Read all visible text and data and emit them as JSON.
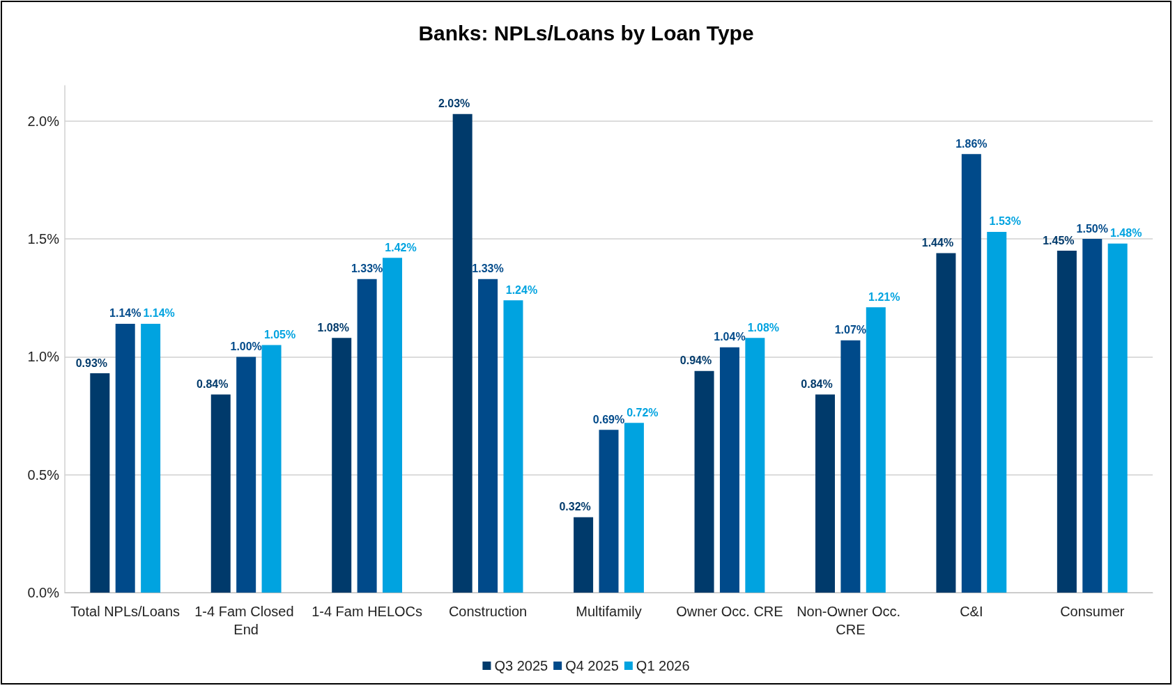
{
  "chart_data": {
    "type": "bar",
    "title": "Banks: NPLs/Loans by Loan Type",
    "categories": [
      "Total NPLs/Loans",
      "1-4 Fam Closed End",
      "1-4 Fam HELOCs",
      "Construction",
      "Multifamily",
      "Owner Occ. CRE",
      "Non-Owner Occ. CRE",
      "C&I",
      "Consumer"
    ],
    "series": [
      {
        "name": "Q3 2025",
        "color": "#003a6b",
        "values": [
          0.93,
          0.84,
          1.08,
          2.03,
          0.32,
          0.94,
          0.84,
          1.44,
          1.45
        ],
        "value_labels": [
          "0.93%",
          "0.84%",
          "1.08%",
          "2.03%",
          "0.32%",
          "0.94%",
          "0.84%",
          "1.44%",
          "1.45%"
        ]
      },
      {
        "name": "Q4 2025",
        "color": "#004a8a",
        "values": [
          1.14,
          1.0,
          1.33,
          1.33,
          0.69,
          1.04,
          1.07,
          1.86,
          1.5
        ],
        "value_labels": [
          "1.14%",
          "1.00%",
          "1.33%",
          "1.33%",
          "0.69%",
          "1.04%",
          "1.07%",
          "1.86%",
          "1.50%"
        ]
      },
      {
        "name": "Q1 2026",
        "color": "#00a3e0",
        "values": [
          1.14,
          1.05,
          1.42,
          1.24,
          0.72,
          1.08,
          1.21,
          1.53,
          1.48
        ],
        "value_labels": [
          "1.14%",
          "1.05%",
          "1.42%",
          "1.24%",
          "0.72%",
          "1.08%",
          "1.21%",
          "1.53%",
          "1.48%"
        ]
      }
    ],
    "ylim": [
      0,
      2.15
    ],
    "yticks": [
      {
        "value": 0,
        "label": "0.0%"
      },
      {
        "value": 0.5,
        "label": "0.5%"
      },
      {
        "value": 1,
        "label": "1.0%"
      },
      {
        "value": 1.5,
        "label": "1.5%"
      },
      {
        "value": 2,
        "label": "2.0%"
      }
    ],
    "grid": "y",
    "legend": "bottom"
  }
}
